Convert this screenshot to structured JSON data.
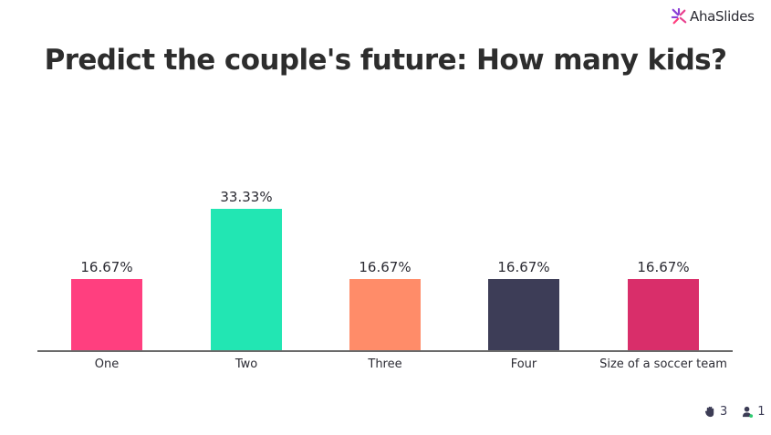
{
  "brand": {
    "name": "AhaSlides",
    "icon": "ahaslides-logo-icon"
  },
  "title": "Predict the couple's future: How many kids?",
  "chart_data": {
    "type": "bar",
    "title": "Predict the couple's future: How many kids?",
    "categories": [
      "One",
      "Two",
      "Three",
      "Four",
      "Size of a soccer team"
    ],
    "values": [
      16.67,
      33.33,
      16.67,
      16.67,
      16.67
    ],
    "value_labels": [
      "16.67%",
      "33.33%",
      "16.67%",
      "16.67%",
      "16.67%"
    ],
    "colors": [
      "#ff3f7f",
      "#22e6b3",
      "#ff8c69",
      "#3d3d57",
      "#d92e6a"
    ],
    "xlabel": "",
    "ylabel": "",
    "grid": false,
    "legend": "none"
  },
  "stats": {
    "responses": "3",
    "responses_icon": "hand-icon",
    "participants": "1",
    "participants_icon": "user-online-icon"
  }
}
